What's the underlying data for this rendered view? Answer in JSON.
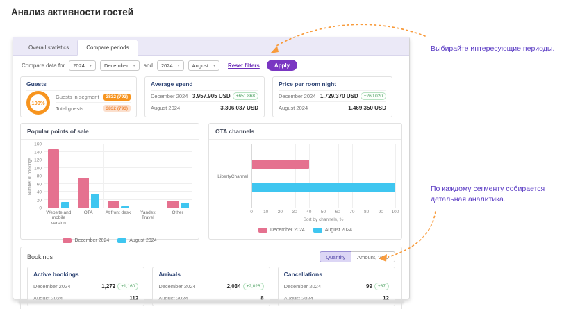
{
  "page": {
    "title": "Анализ активности гостей"
  },
  "tabs": [
    {
      "label": "Overall statistics",
      "active": false
    },
    {
      "label": "Compare periods",
      "active": true
    }
  ],
  "filters": {
    "label": "Compare data for",
    "year1": "2024",
    "month1": "December",
    "and_label": "and",
    "year2": "2024",
    "month2": "August",
    "reset_label": "Reset filters",
    "apply_label": "Apply"
  },
  "stats_cards": {
    "guests": {
      "title": "Guests",
      "donut_value": "100%",
      "rows": [
        {
          "label": "Guests in segment",
          "badge": "3832 (793)"
        },
        {
          "label": "Total guests",
          "badge": "3832 (793)"
        }
      ]
    },
    "average_spend": {
      "title": "Average spend",
      "rows": [
        {
          "label": "December 2024",
          "value": "3.957.905 USD",
          "delta": "+651.868"
        },
        {
          "label": "August 2024",
          "value": "3.306.037 USD"
        }
      ]
    },
    "price_per_room_night": {
      "title": "Price per room night",
      "rows": [
        {
          "label": "December 2024",
          "value": "1.729.370 USD",
          "delta": "+260.020"
        },
        {
          "label": "August 2024",
          "value": "1.469.350 USD"
        }
      ]
    }
  },
  "chart_data": [
    {
      "type": "bar",
      "title": "Popular points of sale",
      "categories": [
        "Website and mobile version",
        "OTA",
        "At front desk",
        "Yandex Travel",
        "Other"
      ],
      "series": [
        {
          "name": "December 2024",
          "color": "#e5718f",
          "values": [
            147,
            75,
            17,
            0,
            17
          ]
        },
        {
          "name": "August 2024",
          "color": "#3fc6f0",
          "values": [
            14,
            36,
            4,
            0,
            13
          ]
        }
      ],
      "xlabel": "",
      "ylabel": "Number of bookings",
      "ylim": [
        0,
        160
      ],
      "ytick_step": 20,
      "grid": true,
      "legend_position": "bottom"
    },
    {
      "type": "bar-horizontal",
      "title": "OTA channels",
      "categories": [
        "LibertyChannel"
      ],
      "series": [
        {
          "name": "December 2024",
          "color": "#e5718f",
          "values": [
            40
          ]
        },
        {
          "name": "August 2024",
          "color": "#3fc6f0",
          "values": [
            100
          ]
        }
      ],
      "xlabel": "Sort by channels, %",
      "ylabel": "",
      "xlim": [
        0,
        100
      ],
      "xtick_step": 10,
      "grid": true,
      "legend_position": "bottom"
    }
  ],
  "bookings": {
    "title": "Bookings",
    "toggle": [
      {
        "label": "Quantity",
        "active": true
      },
      {
        "label": "Amount, VND",
        "active": false
      }
    ],
    "cards": [
      {
        "title": "Active bookings",
        "rows": [
          {
            "label": "December 2024",
            "value": "1,272",
            "delta": "+1,160"
          },
          {
            "label": "August 2024",
            "value": "112"
          }
        ]
      },
      {
        "title": "Arrivals",
        "rows": [
          {
            "label": "December 2024",
            "value": "2,034",
            "delta": "+2,026"
          },
          {
            "label": "August 2024",
            "value": "8"
          }
        ]
      },
      {
        "title": "Cancellations",
        "rows": [
          {
            "label": "December 2024",
            "value": "99",
            "delta": "+87"
          },
          {
            "label": "August 2024",
            "value": "12"
          }
        ]
      }
    ]
  },
  "annotations": [
    {
      "text": "Выбирайте интересующие периоды."
    },
    {
      "text": "По каждому сегменту собирается детальная аналитика."
    }
  ],
  "colors": {
    "accent_purple": "#7a36c2",
    "annotation_purple": "#5b3cc4",
    "orange": "#f7941e",
    "arrow_orange": "#f89b3c",
    "series_pink": "#e5718f",
    "series_blue": "#3fc6f0",
    "delta_green": "#4a9d5f"
  }
}
